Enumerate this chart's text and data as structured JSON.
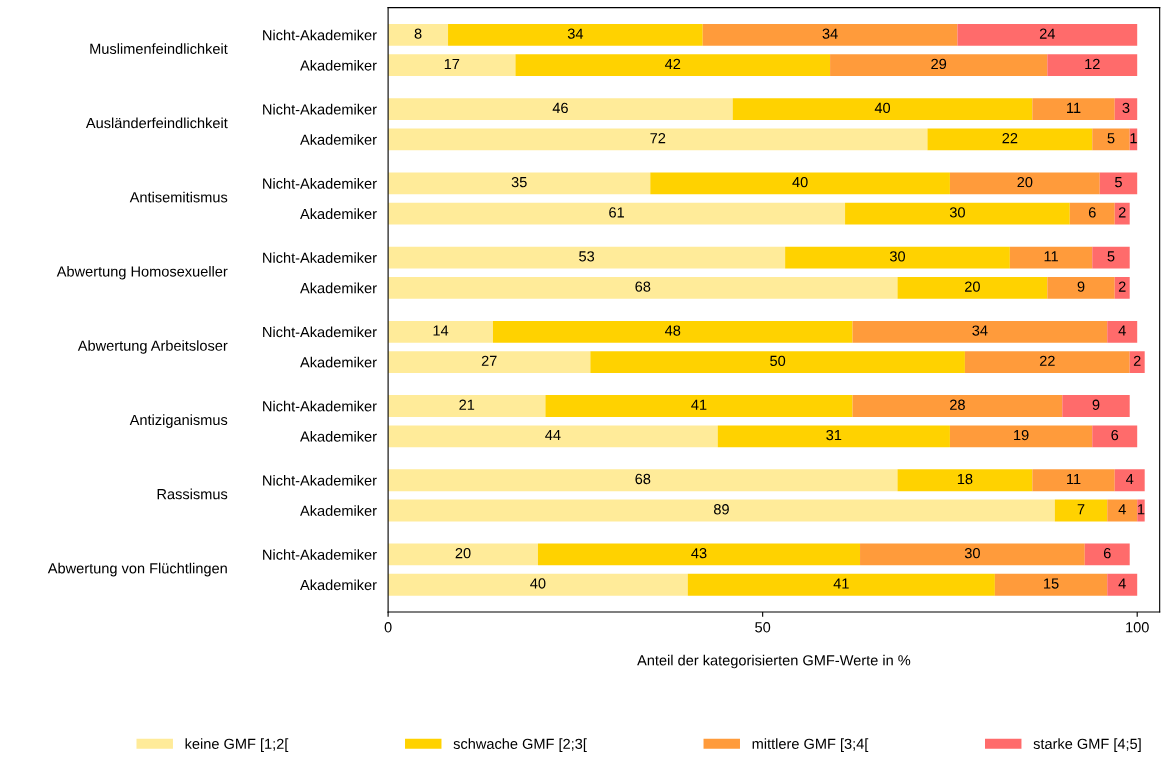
{
  "chart_data": {
    "type": "bar",
    "orientation": "horizontal",
    "stacked": true,
    "xlabel": "Anteil der kategorisierten GMF-Werte in %",
    "categories": [
      "Nicht-Akademiker",
      "Akademiker",
      "Nicht-Akademiker",
      "Akademiker",
      "Nicht-Akademiker",
      "Akademiker",
      "Nicht-Akademiker",
      "Akademiker",
      "Nicht-Akademiker",
      "Akademiker",
      "Nicht-Akademiker",
      "Akademiker",
      "Nicht-Akademiker",
      "Akademiker",
      "Nicht-Akademiker",
      "Akademiker"
    ],
    "annotations": [
      "Muslimenfeindlichkeit",
      "Ausländerfeindlichkeit",
      "Antisemitismus",
      "Abwertung Homosexueller",
      "Abwertung Arbeitsloser",
      "Antiziganismus",
      "Rassismus",
      "Abwertung von Flüchtlingen"
    ],
    "series": [
      {
        "name": "keine GMF [1;2[",
        "color": "#ffeb99",
        "values": [
          8,
          17,
          46,
          72,
          35,
          61,
          53,
          68,
          14,
          27,
          21,
          44,
          68,
          89,
          20,
          40
        ]
      },
      {
        "name": "schwache GMF [2;3[",
        "color": "#ffd200",
        "values": [
          34,
          42,
          40,
          22,
          40,
          30,
          30,
          20,
          48,
          50,
          41,
          31,
          18,
          7,
          43,
          41
        ]
      },
      {
        "name": "mittlere GMF [3;4[",
        "color": "#ff9b3b",
        "values": [
          34,
          29,
          11,
          5,
          20,
          6,
          11,
          9,
          34,
          22,
          28,
          19,
          11,
          4,
          30,
          15
        ]
      },
      {
        "name": "starke GMF [4;5]",
        "color": "#ff6b6b",
        "values": [
          24,
          12,
          3,
          1,
          5,
          2,
          5,
          2,
          4,
          2,
          9,
          6,
          4,
          1,
          6,
          4
        ]
      }
    ],
    "xlim": [
      0,
      103
    ],
    "xticks": [
      0,
      50,
      100
    ],
    "data_labels": true,
    "legend": "bottom",
    "grid": false
  }
}
